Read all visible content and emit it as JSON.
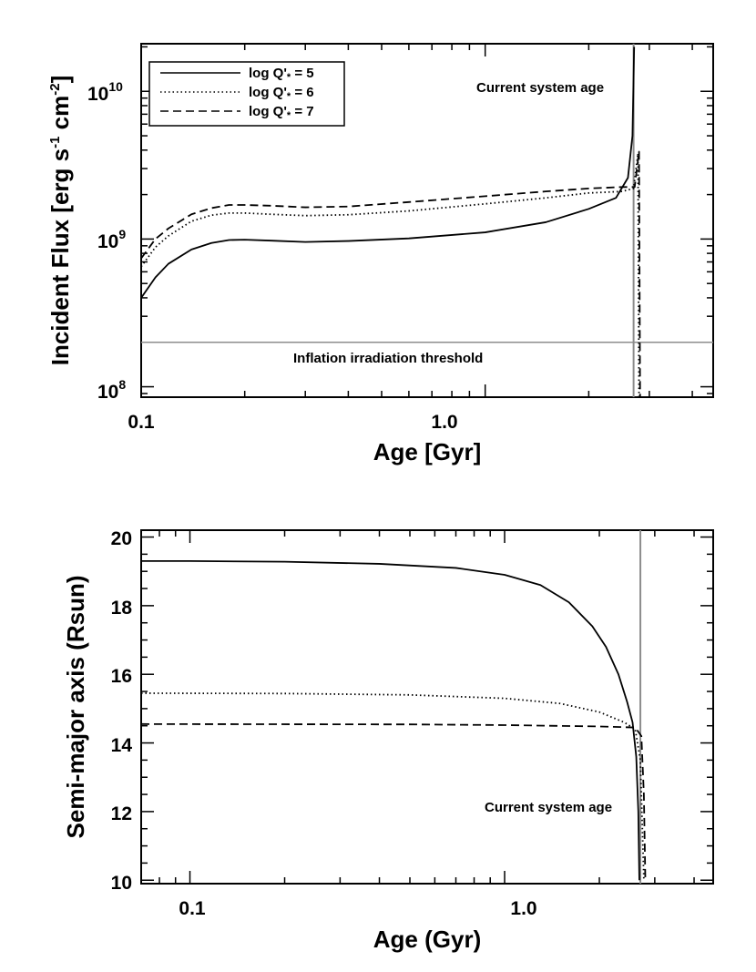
{
  "chart_data": [
    {
      "type": "line",
      "title": "",
      "xlabel": "Age [Gyr]",
      "ylabel": "Incident Flux [erg s-1 cm-2]",
      "ylabel_parts": {
        "main": "Incident Flux [erg s",
        "e1": "-1",
        "mid": " cm",
        "e2": "-2",
        "end": "]"
      },
      "xscale": "log",
      "yscale": "log",
      "xlim": [
        0.1,
        4.6
      ],
      "ylim": [
        85000000.0,
        21000000000.0
      ],
      "x_ticks": [
        0.1,
        1.0
      ],
      "x_tick_labels": [
        "0.1",
        "1.0"
      ],
      "y_ticks": [
        100000000.0,
        1000000000.0,
        10000000000.0
      ],
      "y_tick_labels": [
        {
          "base": "10",
          "exp": "8"
        },
        {
          "base": "10",
          "exp": "9"
        },
        {
          "base": "10",
          "exp": "10"
        }
      ],
      "legend": {
        "placement": "top-left",
        "entries": [
          {
            "label": "log Q'* = 5",
            "text": "log Q'",
            "sub": "*",
            "rest": " = 5",
            "style": "solid"
          },
          {
            "label": "log Q'* = 6",
            "text": "log Q'",
            "sub": "*",
            "rest": " = 6",
            "style": "dotted"
          },
          {
            "label": "log Q'* = 7",
            "text": "log Q'",
            "sub": "*",
            "rest": " = 7",
            "style": "dashed"
          }
        ]
      },
      "series": [
        {
          "name": "log Q'* = 5",
          "style": "solid",
          "points": [
            [
              0.1,
              400000000.0
            ],
            [
              0.11,
              550000000.0
            ],
            [
              0.12,
              680000000.0
            ],
            [
              0.14,
              850000000.0
            ],
            [
              0.16,
              940000000.0
            ],
            [
              0.18,
              985000000.0
            ],
            [
              0.2,
              990000000.0
            ],
            [
              0.24,
              975000000.0
            ],
            [
              0.3,
              955000000.0
            ],
            [
              0.4,
              970000000.0
            ],
            [
              0.6,
              1010000000.0
            ],
            [
              1.0,
              1110000000.0
            ],
            [
              1.5,
              1300000000.0
            ],
            [
              2.0,
              1600000000.0
            ],
            [
              2.4,
              1900000000.0
            ],
            [
              2.6,
              2600000000.0
            ],
            [
              2.68,
              5000000000.0
            ],
            [
              2.71,
              20000000000.0
            ]
          ]
        },
        {
          "name": "log Q'* = 6",
          "style": "dotted",
          "points": [
            [
              0.1,
              650000000.0
            ],
            [
              0.11,
              880000000.0
            ],
            [
              0.12,
              1050000000.0
            ],
            [
              0.14,
              1320000000.0
            ],
            [
              0.16,
              1450000000.0
            ],
            [
              0.18,
              1500000000.0
            ],
            [
              0.2,
              1500000000.0
            ],
            [
              0.24,
              1470000000.0
            ],
            [
              0.3,
              1440000000.0
            ],
            [
              0.4,
              1460000000.0
            ],
            [
              0.6,
              1550000000.0
            ],
            [
              1.0,
              1730000000.0
            ],
            [
              1.5,
              1900000000.0
            ],
            [
              2.0,
              2050000000.0
            ],
            [
              2.5,
              2100000000.0
            ],
            [
              2.7,
              2200000000.0
            ],
            [
              2.78,
              3800000000.0
            ],
            [
              2.8,
              85000000.0
            ]
          ]
        },
        {
          "name": "log Q'* = 7",
          "style": "dashed",
          "points": [
            [
              0.1,
              740000000.0
            ],
            [
              0.11,
              1000000000.0
            ],
            [
              0.12,
              1180000000.0
            ],
            [
              0.14,
              1470000000.0
            ],
            [
              0.16,
              1620000000.0
            ],
            [
              0.18,
              1700000000.0
            ],
            [
              0.2,
              1700000000.0
            ],
            [
              0.24,
              1680000000.0
            ],
            [
              0.3,
              1640000000.0
            ],
            [
              0.4,
              1660000000.0
            ],
            [
              0.6,
              1780000000.0
            ],
            [
              1.0,
              1950000000.0
            ],
            [
              1.5,
              2100000000.0
            ],
            [
              2.0,
              2200000000.0
            ],
            [
              2.5,
              2250000000.0
            ],
            [
              2.72,
              2250000000.0
            ],
            [
              2.8,
              3900000000.0
            ],
            [
              2.82,
              85000000.0
            ]
          ]
        }
      ],
      "hlines": [
        {
          "y": 200000000.0,
          "label": "Inflation irradiation threshold"
        }
      ],
      "vlines": [
        {
          "x": 2.7,
          "label": "Current system age"
        }
      ]
    },
    {
      "type": "line",
      "title": "",
      "xlabel": "Age (Gyr)",
      "ylabel": "Semi-major axis (Rsun)",
      "xscale": "log",
      "yscale": "linear",
      "xlim": [
        0.07,
        4.6
      ],
      "ylim": [
        9.9,
        20.2
      ],
      "x_ticks": [
        0.1,
        1.0
      ],
      "x_tick_labels": [
        "0.1",
        "1.0"
      ],
      "y_ticks": [
        10,
        12,
        14,
        16,
        18,
        20
      ],
      "y_tick_labels": [
        "10",
        "12",
        "14",
        "16",
        "18",
        "20"
      ],
      "series": [
        {
          "name": "log Q'* = 5",
          "style": "solid",
          "points": [
            [
              0.07,
              19.3
            ],
            [
              0.1,
              19.3
            ],
            [
              0.2,
              19.28
            ],
            [
              0.4,
              19.22
            ],
            [
              0.7,
              19.1
            ],
            [
              1.0,
              18.9
            ],
            [
              1.3,
              18.6
            ],
            [
              1.6,
              18.1
            ],
            [
              1.9,
              17.4
            ],
            [
              2.1,
              16.8
            ],
            [
              2.3,
              16.0
            ],
            [
              2.45,
              15.2
            ],
            [
              2.55,
              14.6
            ],
            [
              2.62,
              13.6
            ],
            [
              2.66,
              12.0
            ],
            [
              2.68,
              10.0
            ]
          ]
        },
        {
          "name": "log Q'* = 6",
          "style": "dotted",
          "points": [
            [
              0.07,
              15.45
            ],
            [
              0.2,
              15.44
            ],
            [
              0.5,
              15.4
            ],
            [
              1.0,
              15.3
            ],
            [
              1.5,
              15.15
            ],
            [
              2.0,
              14.9
            ],
            [
              2.4,
              14.6
            ],
            [
              2.6,
              14.4
            ],
            [
              2.7,
              13.5
            ],
            [
              2.75,
              11.0
            ],
            [
              2.77,
              10.0
            ]
          ]
        },
        {
          "name": "log Q'* = 7",
          "style": "dashed",
          "points": [
            [
              0.07,
              14.55
            ],
            [
              0.5,
              14.54
            ],
            [
              1.0,
              14.52
            ],
            [
              2.0,
              14.48
            ],
            [
              2.6,
              14.45
            ],
            [
              2.72,
              14.2
            ],
            [
              2.77,
              12.5
            ],
            [
              2.8,
              10.0
            ]
          ]
        }
      ],
      "vlines": [
        {
          "x": 2.7,
          "label": "Current system age"
        }
      ]
    }
  ],
  "colors": {
    "reference_line": "#8c8c8c",
    "data_line": "#000000",
    "frame": "#000000"
  }
}
